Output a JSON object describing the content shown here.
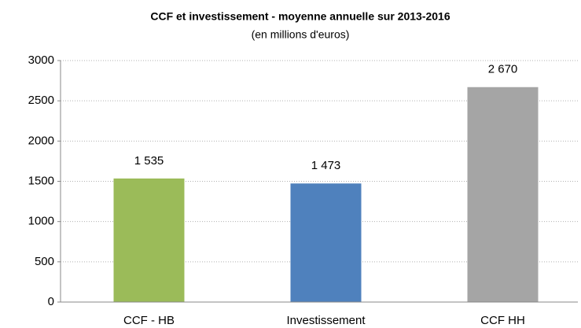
{
  "chart_data": {
    "type": "bar",
    "title": "CCF et investissement - moyenne annuelle sur 2013-2016",
    "subtitle": "(en millions d'euros)",
    "categories": [
      "CCF - HB",
      "Investissement",
      "CCF HH"
    ],
    "values": [
      1535,
      1473,
      2670
    ],
    "value_labels": [
      "1 535",
      "1 473",
      "2 670"
    ],
    "colors": [
      "#9bbb59",
      "#4f81bd",
      "#a5a5a5"
    ],
    "ylim": [
      0,
      3000
    ],
    "yticks": [
      0,
      500,
      1000,
      1500,
      2000,
      2500,
      3000
    ],
    "grid": true
  }
}
